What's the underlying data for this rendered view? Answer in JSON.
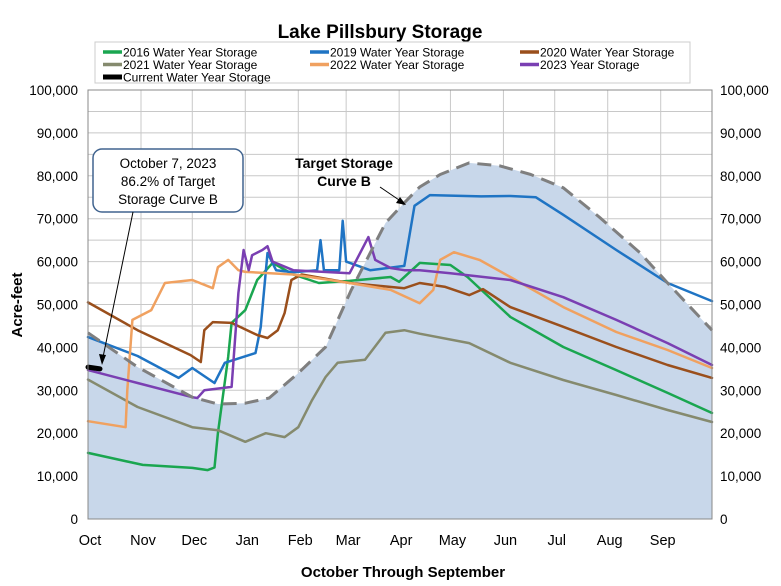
{
  "chart_data": {
    "type": "line",
    "title": "Lake Pillsbury Storage",
    "xlabel": "October Through September",
    "ylabel": "Acre-feet",
    "ylim": [
      0,
      100000
    ],
    "xlim_days": [
      0,
      365
    ],
    "grid": true,
    "legend_position": "top",
    "y_ticks": [
      "0",
      "10,000",
      "20,000",
      "30,000",
      "40,000",
      "50,000",
      "60,000",
      "70,000",
      "80,000",
      "90,000",
      "100,000"
    ],
    "y_tick_values": [
      0,
      10000,
      20000,
      30000,
      40000,
      50000,
      60000,
      70000,
      80000,
      90000,
      100000
    ],
    "x_ticks": [
      "Oct",
      "Nov",
      "Dec",
      "Jan",
      "Feb",
      "Mar",
      "Apr",
      "May",
      "Jun",
      "Jul",
      "Aug",
      "Sep"
    ],
    "x_tick_days": [
      0,
      31,
      61,
      92,
      123,
      151,
      182,
      212,
      243,
      273,
      304,
      335
    ],
    "target_curve": {
      "name": "Target Storage Curve B",
      "label_lines": [
        "Target Storage",
        "Curve B"
      ],
      "color": "#7f7f7f",
      "fill": "#c8d7ea",
      "points": [
        [
          0,
          43400
        ],
        [
          29,
          35400
        ],
        [
          61,
          28400
        ],
        [
          76,
          26800
        ],
        [
          92,
          27000
        ],
        [
          106,
          28200
        ],
        [
          123,
          34000
        ],
        [
          139,
          40100
        ],
        [
          154,
          53400
        ],
        [
          174,
          69000
        ],
        [
          185,
          73700
        ],
        [
          194,
          77400
        ],
        [
          206,
          80300
        ],
        [
          223,
          83000
        ],
        [
          241,
          82300
        ],
        [
          259,
          80300
        ],
        [
          278,
          77200
        ],
        [
          299,
          70400
        ],
        [
          323,
          62000
        ],
        [
          339,
          55000
        ],
        [
          365,
          44000
        ]
      ]
    },
    "series": [
      {
        "name": "2016 Water Year Storage",
        "color": "#1aa650",
        "points": [
          [
            0,
            15400
          ],
          [
            32,
            12600
          ],
          [
            61,
            11900
          ],
          [
            70,
            11400
          ],
          [
            74,
            12000
          ],
          [
            76,
            20000
          ],
          [
            82,
            37800
          ],
          [
            84,
            45700
          ],
          [
            92,
            48700
          ],
          [
            99,
            55700
          ],
          [
            108,
            59700
          ],
          [
            120,
            57000
          ],
          [
            135,
            55000
          ],
          [
            153,
            55500
          ],
          [
            177,
            56400
          ],
          [
            182,
            55300
          ],
          [
            194,
            59700
          ],
          [
            212,
            59200
          ],
          [
            222,
            56400
          ],
          [
            247,
            47100
          ],
          [
            278,
            40100
          ],
          [
            309,
            34700
          ],
          [
            339,
            29400
          ],
          [
            365,
            24700
          ]
        ]
      },
      {
        "name": "2019 Water Year Storage",
        "color": "#1f74c4",
        "points": [
          [
            0,
            42400
          ],
          [
            29,
            38000
          ],
          [
            53,
            32900
          ],
          [
            61,
            35200
          ],
          [
            74,
            31700
          ],
          [
            80,
            36400
          ],
          [
            98,
            38700
          ],
          [
            101,
            44700
          ],
          [
            105,
            62000
          ],
          [
            110,
            58000
          ],
          [
            120,
            57500
          ],
          [
            134,
            58000
          ],
          [
            136,
            65000
          ],
          [
            138,
            58000
          ],
          [
            147,
            58000
          ],
          [
            149,
            69500
          ],
          [
            151,
            60000
          ],
          [
            165,
            58000
          ],
          [
            185,
            59000
          ],
          [
            191,
            73000
          ],
          [
            200,
            75500
          ],
          [
            230,
            75200
          ],
          [
            247,
            75300
          ],
          [
            262,
            75000
          ],
          [
            278,
            70900
          ],
          [
            309,
            62700
          ],
          [
            339,
            55000
          ],
          [
            365,
            50800
          ]
        ]
      },
      {
        "name": "2020 Water Year Storage",
        "color": "#9a4f1c",
        "points": [
          [
            0,
            50500
          ],
          [
            29,
            44000
          ],
          [
            60,
            38200
          ],
          [
            66,
            36600
          ],
          [
            68,
            44000
          ],
          [
            73,
            45900
          ],
          [
            84,
            45700
          ],
          [
            99,
            42900
          ],
          [
            105,
            42200
          ],
          [
            111,
            44000
          ],
          [
            115,
            48000
          ],
          [
            119,
            55700
          ],
          [
            125,
            57000
          ],
          [
            153,
            55000
          ],
          [
            185,
            53800
          ],
          [
            194,
            55000
          ],
          [
            209,
            54100
          ],
          [
            223,
            52200
          ],
          [
            231,
            53600
          ],
          [
            247,
            49400
          ],
          [
            278,
            44800
          ],
          [
            309,
            40100
          ],
          [
            339,
            35900
          ],
          [
            365,
            32900
          ]
        ]
      },
      {
        "name": "2021 Water Year Storage",
        "color": "#858a6e",
        "points": [
          [
            0,
            32500
          ],
          [
            29,
            26100
          ],
          [
            61,
            21400
          ],
          [
            76,
            20700
          ],
          [
            92,
            18000
          ],
          [
            104,
            20000
          ],
          [
            115,
            19100
          ],
          [
            123,
            21400
          ],
          [
            131,
            27700
          ],
          [
            139,
            33100
          ],
          [
            146,
            36400
          ],
          [
            162,
            37100
          ],
          [
            174,
            43400
          ],
          [
            185,
            44000
          ],
          [
            194,
            43200
          ],
          [
            223,
            41000
          ],
          [
            247,
            36400
          ],
          [
            278,
            32400
          ],
          [
            309,
            28900
          ],
          [
            339,
            25400
          ],
          [
            365,
            22600
          ]
        ]
      },
      {
        "name": "2022 Water Year Storage",
        "color": "#f0a160",
        "points": [
          [
            0,
            22800
          ],
          [
            22,
            21400
          ],
          [
            23,
            30000
          ],
          [
            26,
            46400
          ],
          [
            37,
            48700
          ],
          [
            45,
            55000
          ],
          [
            61,
            55700
          ],
          [
            73,
            53800
          ],
          [
            76,
            58700
          ],
          [
            82,
            60400
          ],
          [
            88,
            58000
          ],
          [
            92,
            57600
          ],
          [
            120,
            57000
          ],
          [
            153,
            55000
          ],
          [
            177,
            53400
          ],
          [
            194,
            50300
          ],
          [
            202,
            53400
          ],
          [
            206,
            60400
          ],
          [
            214,
            62200
          ],
          [
            229,
            60400
          ],
          [
            247,
            56400
          ],
          [
            278,
            49400
          ],
          [
            309,
            43600
          ],
          [
            339,
            39400
          ],
          [
            365,
            35200
          ]
        ]
      },
      {
        "name": "2023 Year Storage",
        "color": "#7a3fb2",
        "points": [
          [
            0,
            34700
          ],
          [
            29,
            31700
          ],
          [
            61,
            28400
          ],
          [
            64,
            28200
          ],
          [
            68,
            30000
          ],
          [
            84,
            30800
          ],
          [
            88,
            52700
          ],
          [
            91,
            62700
          ],
          [
            94,
            58000
          ],
          [
            96,
            61500
          ],
          [
            102,
            62700
          ],
          [
            105,
            63600
          ],
          [
            108,
            60000
          ],
          [
            120,
            58000
          ],
          [
            153,
            57300
          ],
          [
            164,
            65700
          ],
          [
            168,
            60400
          ],
          [
            177,
            58500
          ],
          [
            185,
            58000
          ],
          [
            194,
            58000
          ],
          [
            212,
            57300
          ],
          [
            247,
            55700
          ],
          [
            278,
            51700
          ],
          [
            309,
            46400
          ],
          [
            339,
            41000
          ],
          [
            365,
            35900
          ]
        ]
      },
      {
        "name": "Current Water Year Storage",
        "color": "#000000",
        "width": 5,
        "points": [
          [
            0,
            35400
          ],
          [
            7,
            35000
          ]
        ]
      }
    ],
    "annotation": {
      "lines": [
        "October 7, 2023",
        "86.2% of Target",
        "Storage Curve B"
      ],
      "points_to_day": 7,
      "points_to_value": 35000
    }
  }
}
